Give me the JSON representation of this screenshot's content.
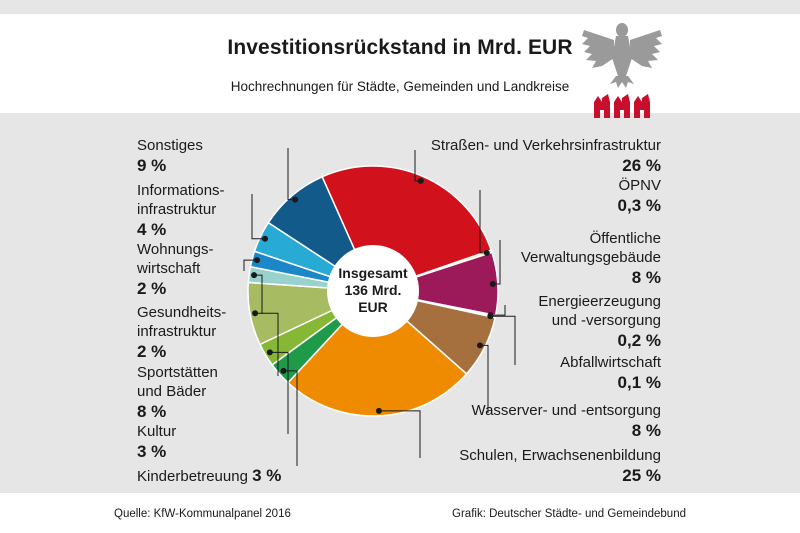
{
  "header": {
    "title": "Investitionsrückstand in Mrd. EUR",
    "subtitle": "Hochrechnungen für Städte, Gemeinden und Landkreise"
  },
  "footer": {
    "source": "Quelle: KfW-Kommunalpanel 2016",
    "credit": "Grafik: Deutscher Städte- und Gemeindebund"
  },
  "colors": {
    "panel": "#e6e6e6",
    "logo_red": "#c8102e",
    "eagle_gray": "#9a9a9a"
  },
  "chart_data": {
    "type": "pie",
    "center_lines": [
      "Insgesamt",
      "136 Mrd.",
      "EUR"
    ],
    "slices": [
      {
        "label_lines": [
          "Straßen- und Verkehrsinfrastruktur"
        ],
        "label": "Straßen- und Verkehrsinfrastruktur",
        "value": 26,
        "value_text": "26 %",
        "color": "#d1121c"
      },
      {
        "label_lines": [
          "ÖPNV"
        ],
        "label": "ÖPNV",
        "value": 0.3,
        "value_text": "0,3 %",
        "color": "#f3e37c"
      },
      {
        "label_lines": [
          "Öffentliche",
          "Verwaltungsgebäude"
        ],
        "label": "Öffentliche Verwaltungsgebäude",
        "value": 8,
        "value_text": "8 %",
        "color": "#9c1a5a"
      },
      {
        "label_lines": [
          "Energieerzeugung",
          "und -versorgung"
        ],
        "label": "Energieerzeugung und -versorgung",
        "value": 0.2,
        "value_text": "0,2 %",
        "color": "#7e6a52"
      },
      {
        "label_lines": [
          "Abfallwirtschaft"
        ],
        "label": "Abfallwirtschaft",
        "value": 0.1,
        "value_text": "0,1 %",
        "color": "#5c4a3a"
      },
      {
        "label_lines": [
          "Wasserver- und -entsorgung"
        ],
        "label": "Wasserver- und -entsorgung",
        "value": 8,
        "value_text": "8 %",
        "color": "#a6703e"
      },
      {
        "label_lines": [
          "Schulen, Erwachsenenbildung"
        ],
        "label": "Schulen, Erwachsenenbildung",
        "value": 25,
        "value_text": "25 %",
        "color": "#ef8b00"
      },
      {
        "label_lines": [
          "Kinderbetreuung"
        ],
        "label": "Kinderbetreuung",
        "value": 3,
        "value_text": "3 %",
        "color": "#1e9a48"
      },
      {
        "label_lines": [
          "Kultur"
        ],
        "label": "Kultur",
        "value": 3,
        "value_text": "3 %",
        "color": "#86b836"
      },
      {
        "label_lines": [
          "Sportstätten",
          "und Bäder"
        ],
        "label": "Sportstätten und Bäder",
        "value": 8,
        "value_text": "8 %",
        "color": "#a6bb62"
      },
      {
        "label_lines": [
          "Gesundheits-",
          "infrastruktur"
        ],
        "label": "Gesundheitsinfrastruktur",
        "value": 2,
        "value_text": "2 %",
        "color": "#98d2cc"
      },
      {
        "label_lines": [
          "Wohnungs-",
          "wirtschaft"
        ],
        "label": "Wohnungswirtschaft",
        "value": 2,
        "value_text": "2 %",
        "color": "#1b87c9"
      },
      {
        "label_lines": [
          "Informations-",
          "infrastruktur"
        ],
        "label": "Informationsinfrastruktur",
        "value": 4,
        "value_text": "4 %",
        "color": "#27aad4"
      },
      {
        "label_lines": [
          "Sonstiges"
        ],
        "label": "Sonstiges",
        "value": 9,
        "value_text": "9 %",
        "color": "#125a8a"
      }
    ]
  }
}
